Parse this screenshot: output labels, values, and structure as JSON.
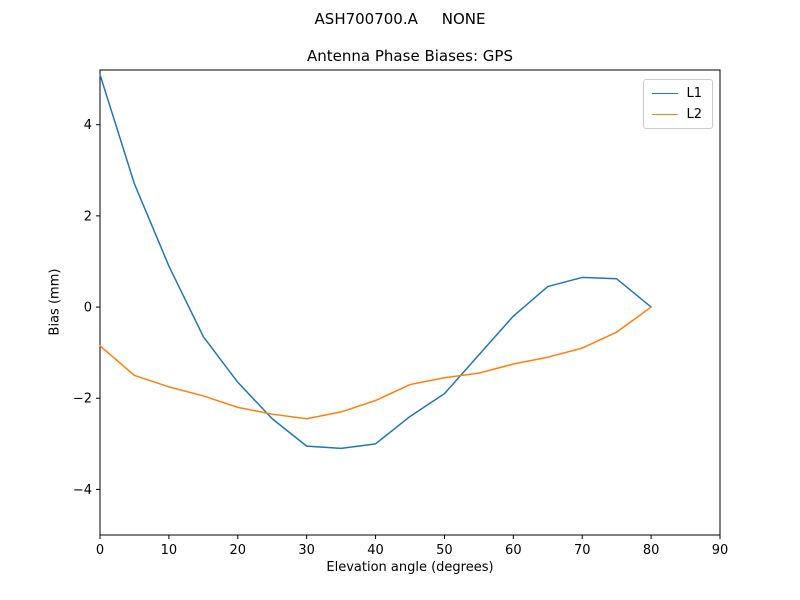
{
  "figure": {
    "suptitle": "ASH700700.A     NONE"
  },
  "chart_data": {
    "type": "line",
    "title": "Antenna Phase Biases: GPS",
    "xlabel": "Elevation angle (degrees)",
    "ylabel": "Bias (mm)",
    "xlim": [
      0,
      90
    ],
    "ylim": [
      -5.0,
      5.2
    ],
    "xticks": [
      0,
      10,
      20,
      30,
      40,
      50,
      60,
      70,
      80,
      90
    ],
    "yticks": [
      -4,
      -2,
      0,
      2,
      4
    ],
    "grid": false,
    "legend_position": "upper right",
    "x": [
      0,
      5,
      10,
      15,
      20,
      25,
      30,
      35,
      40,
      45,
      50,
      55,
      60,
      65,
      70,
      75,
      80
    ],
    "series": [
      {
        "name": "L1",
        "color": "#1f77b4",
        "values": [
          5.1,
          2.7,
          0.9,
          -0.65,
          -1.65,
          -2.45,
          -3.05,
          -3.1,
          -3.0,
          -2.4,
          -1.9,
          -1.05,
          -0.2,
          0.45,
          0.65,
          0.62,
          0.0
        ]
      },
      {
        "name": "L2",
        "color": "#ff7f0e",
        "values": [
          -0.85,
          -1.5,
          -1.75,
          -1.95,
          -2.2,
          -2.35,
          -2.45,
          -2.3,
          -2.05,
          -1.7,
          -1.55,
          -1.45,
          -1.25,
          -1.1,
          -0.9,
          -0.55,
          0.0
        ]
      }
    ]
  }
}
